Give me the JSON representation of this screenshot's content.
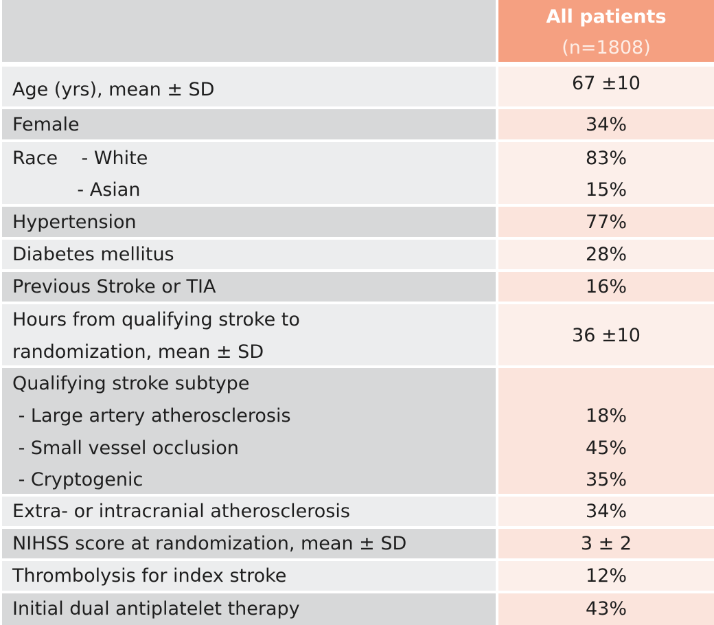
{
  "table": {
    "header": {
      "column_title": "All patients",
      "column_subtitle": "(n=1808)"
    },
    "rows": [
      {
        "label_lines": [
          "Age (yrs), mean ± SD"
        ],
        "value_lines": [
          "67 ±10"
        ]
      },
      {
        "label_lines": [
          "Female"
        ],
        "value_lines": [
          "34%"
        ]
      },
      {
        "label_lines": [
          "Race    - White",
          "           - Asian"
        ],
        "value_lines": [
          "83%",
          "15%"
        ]
      },
      {
        "label_lines": [
          "Hypertension"
        ],
        "value_lines": [
          "77%"
        ]
      },
      {
        "label_lines": [
          "Diabetes mellitus"
        ],
        "value_lines": [
          "28%"
        ]
      },
      {
        "label_lines": [
          "Previous Stroke or TIA"
        ],
        "value_lines": [
          "16%"
        ]
      },
      {
        "label_lines": [
          "Hours from qualifying stroke to",
          "randomization, mean ± SD"
        ],
        "value_lines": [
          "36 ±10"
        ]
      },
      {
        "label_lines": [
          "Qualifying stroke subtype",
          " - Large artery atherosclerosis",
          " - Small vessel occlusion",
          " - Cryptogenic"
        ],
        "value_lines": [
          "",
          "18%",
          "45%",
          "35%"
        ]
      },
      {
        "label_lines": [
          "Extra- or intracranial atherosclerosis"
        ],
        "value_lines": [
          "34%"
        ]
      },
      {
        "label_lines": [
          "NIHSS score at randomization, mean ± SD"
        ],
        "value_lines": [
          "3 ± 2"
        ]
      },
      {
        "label_lines": [
          "Thrombolysis for index stroke"
        ],
        "value_lines": [
          "12%"
        ]
      },
      {
        "label_lines": [
          "Initial dual antiplatelet therapy"
        ],
        "value_lines": [
          "43%"
        ]
      }
    ]
  }
}
